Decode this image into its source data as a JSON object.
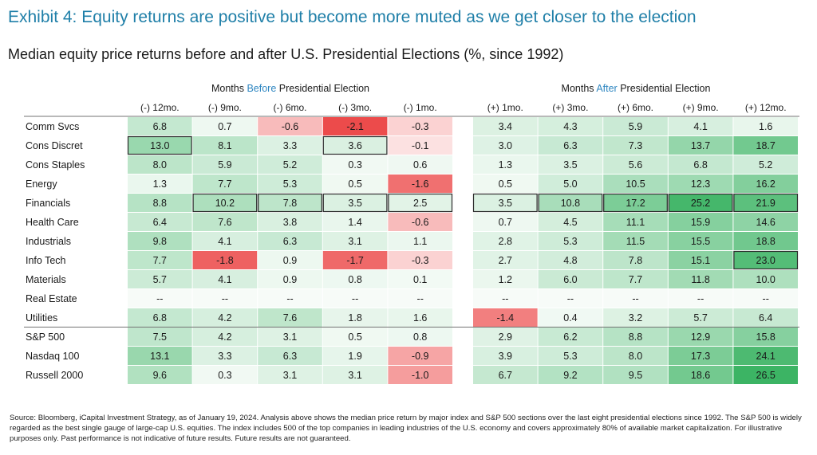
{
  "exhibit_title": "Exhibit 4: Equity returns are positive but become more muted as we get closer to the election",
  "subtitle": "Median equity price returns before and after U.S. Presidential Elections (%, since 1992)",
  "source_note": "Source: Bloomberg, iCapital Investment Strategy, as of January 19, 2024. Analysis above shows the median price return by major index and S&P 500 sections over the last eight presidential elections since 1992. The S&P 500 is widely regarded as the best single gauge of large-cap U.S. equities. The index includes 500 of the top companies in leading industries of the U.S. economy and covers approximately 80% of available market capitalization. For illustrative purposes only. Past performance is not indicative of future results. Future results are not guaranteed.",
  "colors": {
    "title": "#1f7fa8",
    "highlight_word": "#2e86c1",
    "positive": "#3cb464",
    "negative": "#ec4b4b"
  },
  "chart_data": {
    "type": "heatmap",
    "groups": [
      {
        "prefix": "Months ",
        "highlight": "Before",
        "suffix": " Presidential Election"
      },
      {
        "prefix": "Months ",
        "highlight": "After",
        "suffix": " Presidential Election"
      }
    ],
    "columns": [
      "(-) 12mo.",
      "(-) 9mo.",
      "(-) 6mo.",
      "(-) 3mo.",
      "(-) 1mo.",
      "(+) 1mo.",
      "(+) 3mo.",
      "(+) 6mo.",
      "(+) 9mo.",
      "(+) 12mo."
    ],
    "rows": [
      "Comm Svcs",
      "Cons Discret",
      "Cons Staples",
      "Energy",
      "Financials",
      "Health Care",
      "Industrials",
      "Info Tech",
      "Materials",
      "Real Estate",
      "Utilities",
      "S&P 500",
      "Nasdaq 100",
      "Russell 2000"
    ],
    "values": [
      [
        6.8,
        0.7,
        -0.6,
        -2.1,
        -0.3,
        3.4,
        4.3,
        5.9,
        4.1,
        1.6
      ],
      [
        13.0,
        8.1,
        3.3,
        3.6,
        -0.1,
        3.0,
        6.3,
        7.3,
        13.7,
        18.7
      ],
      [
        8.0,
        5.9,
        5.2,
        0.3,
        0.6,
        1.3,
        3.5,
        5.6,
        6.8,
        5.2
      ],
      [
        1.3,
        7.7,
        5.3,
        0.5,
        -1.6,
        0.5,
        5.0,
        10.5,
        12.3,
        16.2
      ],
      [
        8.8,
        10.2,
        7.8,
        3.5,
        2.5,
        3.5,
        10.8,
        17.2,
        25.2,
        21.9
      ],
      [
        6.4,
        7.6,
        3.8,
        1.4,
        -0.6,
        0.7,
        4.5,
        11.1,
        15.9,
        14.6
      ],
      [
        9.8,
        4.1,
        6.3,
        3.1,
        1.1,
        2.8,
        5.3,
        11.5,
        15.5,
        18.8
      ],
      [
        7.7,
        -1.8,
        0.9,
        -1.7,
        -0.3,
        2.7,
        4.8,
        7.8,
        15.1,
        23.0
      ],
      [
        5.7,
        4.1,
        0.9,
        0.8,
        0.1,
        1.2,
        6.0,
        7.7,
        11.8,
        10.0
      ],
      [
        null,
        null,
        null,
        null,
        null,
        null,
        null,
        null,
        null,
        null
      ],
      [
        6.8,
        4.2,
        7.6,
        1.8,
        1.6,
        -1.4,
        0.4,
        3.2,
        5.7,
        6.4
      ],
      [
        7.5,
        4.2,
        3.1,
        0.5,
        0.8,
        2.9,
        6.2,
        8.8,
        12.9,
        15.8
      ],
      [
        13.1,
        3.3,
        6.3,
        1.9,
        -0.9,
        3.9,
        5.3,
        8.0,
        17.3,
        24.1
      ],
      [
        9.6,
        0.3,
        3.1,
        3.1,
        -1.0,
        6.7,
        9.2,
        9.5,
        18.6,
        26.5
      ]
    ],
    "missing_label": "--",
    "boxed_cells": [
      [
        1,
        0
      ],
      [
        1,
        3
      ],
      [
        4,
        1
      ],
      [
        4,
        2
      ],
      [
        4,
        3
      ],
      [
        4,
        4
      ],
      [
        4,
        5
      ],
      [
        4,
        6
      ],
      [
        4,
        7
      ],
      [
        4,
        8
      ],
      [
        4,
        9
      ],
      [
        7,
        9
      ]
    ]
  }
}
